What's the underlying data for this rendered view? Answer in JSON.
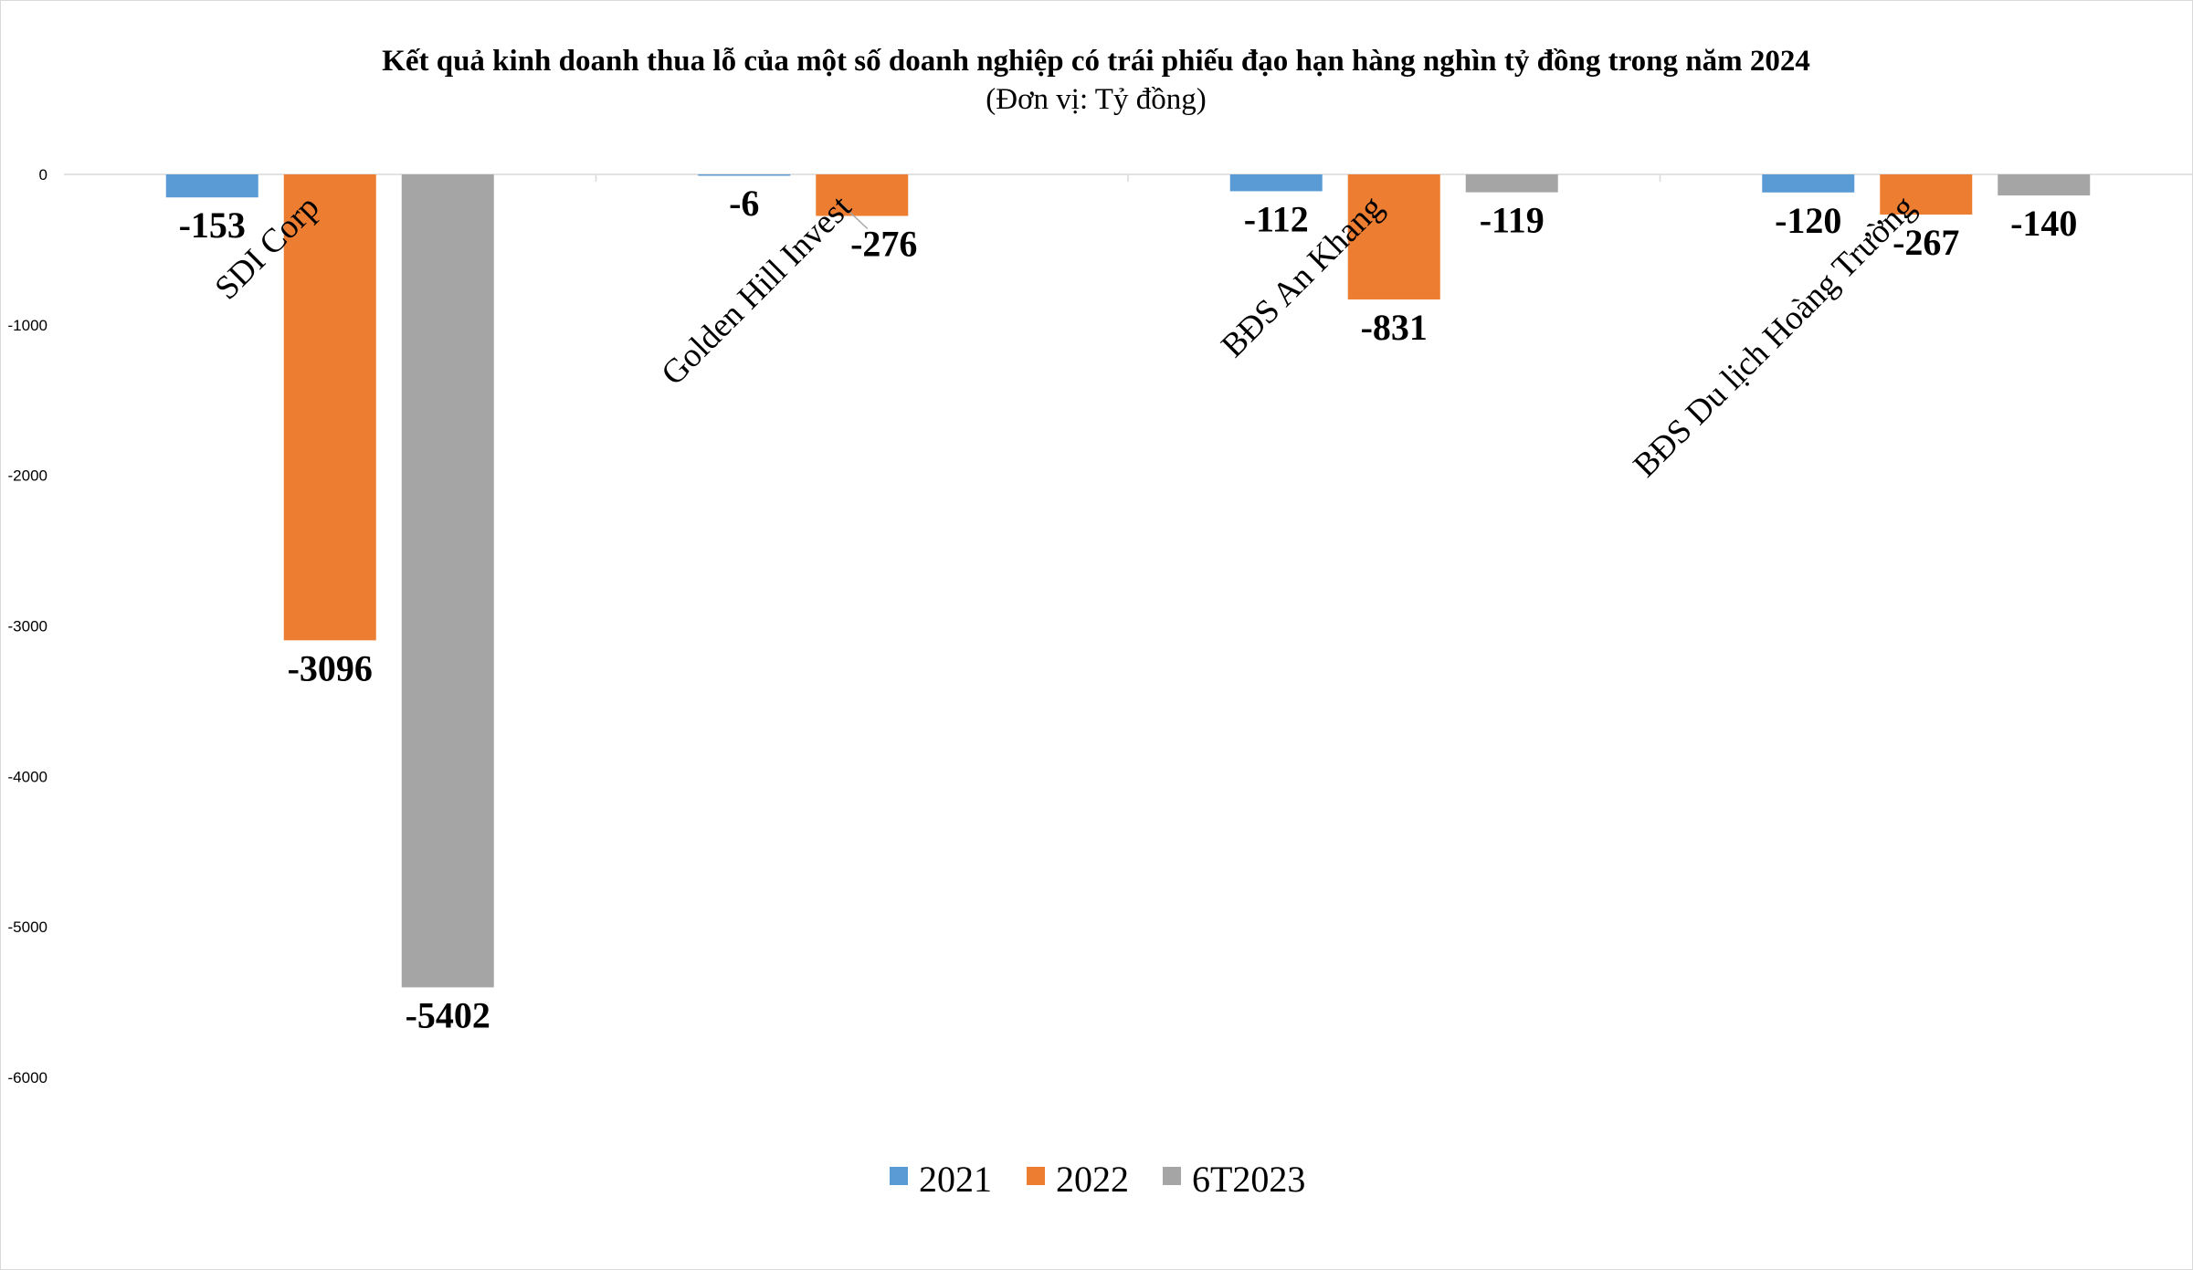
{
  "chart_data": {
    "type": "bar",
    "title": "Kết quả kinh doanh thua lỗ của một số doanh nghiệp có trái phiếu đạo hạn hàng nghìn tỷ đồng trong năm 2024",
    "subtitle": "(Đơn vị: Tỷ đồng)",
    "categories": [
      "SDI Corp",
      "Golden Hill Invest",
      "BĐS An Khang",
      "BĐS Du lịch Hoàng Trường"
    ],
    "series": [
      {
        "name": "2021",
        "color": "#5b9bd5",
        "values": [
          -153,
          -6,
          -112,
          -120
        ]
      },
      {
        "name": "2022",
        "color": "#ed7d31",
        "values": [
          -3096,
          -276,
          -831,
          -267
        ]
      },
      {
        "name": "6T2023",
        "color": "#a5a5a5",
        "values": [
          -5402,
          null,
          -119,
          -140
        ]
      }
    ],
    "data_labels": [
      [
        "-153",
        "-6",
        "-112",
        "-120"
      ],
      [
        "-3096",
        "-276",
        "-831",
        "-267"
      ],
      [
        "-5402",
        "",
        "-119",
        "-140"
      ]
    ],
    "yticks": [
      0,
      -1000,
      -2000,
      -3000,
      -4000,
      -5000,
      -6000
    ],
    "ylim": [
      -6000,
      0
    ],
    "category_labels_rotated": true,
    "grid": false,
    "legend_position": "bottom"
  }
}
